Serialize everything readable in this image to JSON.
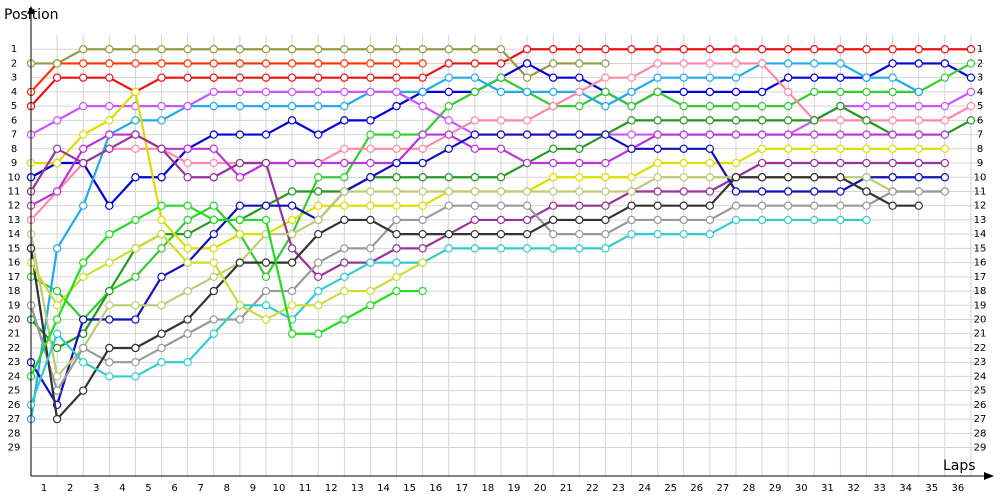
{
  "chart_data": {
    "type": "line",
    "y_label": "Position",
    "x_label": "Laps",
    "x": [
      0,
      1,
      2,
      3,
      4,
      5,
      6,
      7,
      8,
      9,
      10,
      11,
      12,
      13,
      14,
      15,
      16,
      17,
      18,
      19,
      20,
      21,
      22,
      23,
      24,
      25,
      26,
      27,
      28,
      29,
      30,
      31,
      32,
      33,
      34,
      35,
      36
    ],
    "xlim": [
      0,
      36.5
    ],
    "xticks": [
      1,
      2,
      3,
      4,
      5,
      6,
      7,
      8,
      9,
      10,
      11,
      12,
      13,
      14,
      15,
      16,
      17,
      18,
      19,
      20,
      21,
      22,
      23,
      24,
      25,
      26,
      27,
      28,
      29,
      30,
      31,
      32,
      33,
      34,
      35,
      36
    ],
    "ylim": [
      31,
      0
    ],
    "yticks": [
      1,
      2,
      3,
      4,
      5,
      6,
      7,
      8,
      9,
      10,
      11,
      12,
      13,
      14,
      15,
      16,
      17,
      18,
      19,
      20,
      21,
      22,
      23,
      24,
      25,
      26,
      27,
      28,
      29
    ],
    "grid": true,
    "series": [
      {
        "color": "#ee1111",
        "values": [
          5,
          3,
          3,
          3,
          4,
          3,
          3,
          3,
          3,
          3,
          3,
          3,
          3,
          3,
          3,
          3,
          2,
          2,
          2,
          1,
          1,
          1,
          1,
          1,
          1,
          1,
          1,
          1,
          1,
          1,
          1,
          1,
          1,
          1,
          1,
          1,
          1
        ]
      },
      {
        "color": "#ff3300",
        "values": [
          4,
          2,
          2,
          2,
          2,
          2,
          2,
          2,
          2,
          2,
          2,
          2,
          2,
          2,
          2,
          2,
          null,
          null,
          null,
          null,
          null,
          null,
          null,
          null,
          null,
          null,
          null,
          null,
          null,
          null,
          null,
          null,
          null,
          null,
          null,
          null,
          null
        ]
      },
      {
        "color": "#999944",
        "values": [
          2,
          2,
          1,
          1,
          1,
          1,
          1,
          1,
          1,
          1,
          1,
          1,
          1,
          1,
          1,
          1,
          1,
          1,
          1,
          3,
          2,
          2,
          2,
          null,
          null,
          null,
          null,
          null,
          null,
          null,
          null,
          null,
          null,
          null,
          null,
          null,
          null
        ]
      },
      {
        "color": "#0000dd",
        "values": [
          10,
          9,
          9,
          12,
          10,
          10,
          8,
          7,
          7,
          7,
          6,
          7,
          6,
          6,
          5,
          4,
          4,
          4,
          3,
          2,
          3,
          3,
          4,
          5,
          4,
          4,
          4,
          4,
          4,
          3,
          3,
          3,
          3,
          2,
          2,
          2,
          3
        ]
      },
      {
        "color": "#33cc33",
        "values": [
          17,
          18,
          20,
          18,
          17,
          15,
          13,
          12,
          14,
          17,
          14,
          10,
          10,
          7,
          7,
          7,
          5,
          4,
          3,
          4,
          5,
          5,
          4,
          5,
          4,
          5,
          5,
          5,
          5,
          5,
          4,
          4,
          4,
          4,
          4,
          3,
          2
        ]
      },
      {
        "color": "#22aaee",
        "values": [
          27,
          15,
          12,
          7,
          6,
          6,
          5,
          5,
          5,
          5,
          5,
          5,
          5,
          4,
          4,
          4,
          3,
          3,
          4,
          4,
          4,
          4,
          5,
          4,
          3,
          3,
          3,
          3,
          2,
          2,
          2,
          2,
          3,
          3,
          4,
          null,
          null
        ]
      },
      {
        "color": "#cc55ff",
        "values": [
          7,
          6,
          5,
          5,
          5,
          5,
          5,
          4,
          4,
          4,
          4,
          4,
          4,
          4,
          4,
          5,
          6,
          7,
          7,
          7,
          7,
          7,
          7,
          7,
          7,
          7,
          7,
          7,
          7,
          7,
          6,
          5,
          5,
          5,
          5,
          5,
          4
        ]
      },
      {
        "color": "#ff88aa",
        "values": [
          13,
          11,
          9,
          8,
          8,
          8,
          9,
          9,
          9,
          9,
          9,
          9,
          8,
          8,
          8,
          8,
          7,
          6,
          6,
          6,
          5,
          4,
          3,
          3,
          2,
          2,
          2,
          2,
          2,
          4,
          6,
          6,
          6,
          6,
          6,
          6,
          5
        ]
      },
      {
        "color": "#229922",
        "values": [
          20,
          22,
          21,
          18,
          15,
          14,
          14,
          13,
          13,
          12,
          11,
          11,
          11,
          10,
          10,
          10,
          10,
          10,
          10,
          9,
          8,
          8,
          7,
          6,
          6,
          6,
          6,
          6,
          6,
          6,
          6,
          5,
          6,
          7,
          7,
          7,
          6
        ]
      },
      {
        "color": "#bb33dd",
        "values": [
          12,
          11,
          8,
          7,
          7,
          8,
          8,
          8,
          10,
          9,
          9,
          9,
          9,
          9,
          9,
          7,
          7,
          8,
          8,
          9,
          9,
          9,
          9,
          8,
          7,
          7,
          7,
          7,
          7,
          7,
          7,
          7,
          7,
          7,
          7,
          7,
          null
        ]
      },
      {
        "color": "#dddd00",
        "values": [
          9,
          9,
          7,
          6,
          4,
          13,
          15,
          15,
          14,
          14,
          13,
          12,
          12,
          12,
          12,
          12,
          11,
          11,
          11,
          11,
          10,
          10,
          10,
          10,
          9,
          9,
          9,
          9,
          8,
          8,
          8,
          8,
          8,
          8,
          8,
          8,
          null
        ]
      },
      {
        "color": "#993399",
        "values": [
          11,
          8,
          9,
          8,
          7,
          8,
          10,
          10,
          9,
          9,
          15,
          17,
          16,
          16,
          15,
          15,
          14,
          13,
          13,
          13,
          12,
          12,
          12,
          11,
          11,
          11,
          11,
          10,
          9,
          9,
          9,
          9,
          9,
          9,
          9,
          9,
          null
        ]
      },
      {
        "color": "#1111bb",
        "values": [
          23,
          26,
          20,
          20,
          20,
          17,
          16,
          14,
          12,
          12,
          12,
          13,
          11,
          10,
          9,
          9,
          8,
          7,
          7,
          7,
          7,
          7,
          7,
          8,
          8,
          8,
          8,
          11,
          11,
          11,
          11,
          11,
          10,
          10,
          10,
          10,
          null
        ]
      },
      {
        "color": "#bbcc77",
        "values": [
          14,
          24,
          22,
          19,
          19,
          19,
          18,
          17,
          16,
          14,
          14,
          13,
          11,
          11,
          11,
          11,
          11,
          11,
          11,
          11,
          11,
          11,
          11,
          11,
          10,
          10,
          10,
          10,
          10,
          10,
          10,
          10,
          10,
          11,
          11,
          11,
          null
        ]
      },
      {
        "color": "#999999",
        "values": [
          19,
          25,
          22,
          23,
          23,
          22,
          21,
          20,
          20,
          18,
          18,
          16,
          15,
          15,
          13,
          13,
          12,
          12,
          12,
          12,
          14,
          14,
          14,
          13,
          13,
          13,
          13,
          12,
          12,
          12,
          12,
          12,
          12,
          11,
          11,
          11,
          null
        ]
      },
      {
        "color": "#333333",
        "values": [
          15,
          27,
          25,
          22,
          22,
          21,
          20,
          18,
          16,
          16,
          16,
          14,
          13,
          13,
          14,
          14,
          14,
          14,
          14,
          14,
          13,
          13,
          13,
          12,
          12,
          12,
          12,
          10,
          10,
          10,
          10,
          10,
          11,
          12,
          12,
          null,
          null
        ]
      },
      {
        "color": "#33cccc",
        "values": [
          26,
          21,
          23,
          24,
          24,
          23,
          23,
          21,
          19,
          19,
          20,
          18,
          17,
          16,
          16,
          16,
          15,
          15,
          15,
          15,
          15,
          15,
          15,
          14,
          14,
          14,
          14,
          13,
          13,
          13,
          13,
          13,
          13,
          null,
          null,
          null,
          null
        ]
      },
      {
        "color": "#ccdd33",
        "values": [
          16,
          19,
          17,
          16,
          15,
          14,
          16,
          16,
          19,
          20,
          19,
          19,
          18,
          18,
          17,
          16,
          null,
          null,
          null,
          null,
          null,
          null,
          null,
          null,
          null,
          null,
          null,
          null,
          null,
          null,
          null,
          null,
          null,
          null,
          null,
          null,
          null
        ]
      },
      {
        "color": "#22dd22",
        "values": [
          24,
          20,
          16,
          14,
          13,
          12,
          12,
          13,
          13,
          13,
          21,
          21,
          20,
          19,
          18,
          18,
          null,
          null,
          null,
          null,
          null,
          null,
          null,
          null,
          null,
          null,
          null,
          null,
          null,
          null,
          null,
          null,
          null,
          null,
          null,
          null,
          null
        ]
      }
    ]
  }
}
